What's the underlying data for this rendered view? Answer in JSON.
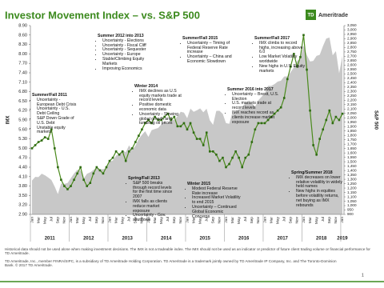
{
  "header": {
    "logo_mark": "TD",
    "logo_text": "Ameritrade"
  },
  "chart_data": {
    "type": "line",
    "title": "Investor Movement Index – vs. S&P 500",
    "ylabel": "IMX",
    "y2label": "S&P 500",
    "categories": [
      "Jan",
      null,
      "Mar",
      null,
      "May",
      null,
      "Jul",
      null,
      "Sep",
      null,
      "Nov",
      null,
      "Jan",
      null,
      "Mar",
      null,
      "May",
      null,
      "Jul",
      null,
      "Sep",
      null,
      "Nov",
      null,
      "Jan",
      null,
      "Mar",
      null,
      "May",
      null,
      "Jul",
      null,
      "Sep",
      null,
      "Nov",
      null,
      "Jan",
      null,
      "Mar",
      null,
      "May",
      null,
      "Jul",
      null,
      "Sep",
      null,
      "Nov",
      null,
      "Jan",
      null,
      "Mar",
      null,
      "May",
      null,
      "Jul",
      null,
      "Sep",
      null,
      "Nov",
      null,
      "Jan",
      null,
      "Mar",
      null,
      "May",
      null,
      "Jul",
      null,
      "Sep",
      null,
      "Nov",
      null,
      "Jan",
      null,
      "Mar",
      null,
      "May",
      null,
      "Jul",
      null,
      "Sep",
      null,
      "Nov",
      null,
      "Jan",
      null,
      "Mar",
      null,
      "May",
      null,
      "Jul",
      null,
      "Sep",
      null,
      "Nov",
      null,
      "Jan"
    ],
    "x_groups": [
      "2011",
      "2012",
      "2013",
      "2014",
      "2015",
      "2016",
      "2017",
      "2018",
      "2019"
    ],
    "series": [
      {
        "name": "IMX",
        "color": "#4a8a1c",
        "values": [
          5.0,
          5.1,
          5.2,
          5.25,
          5.35,
          5.3,
          5.6,
          5.0,
          4.4,
          4.0,
          3.8,
          3.7,
          3.8,
          4.0,
          4.2,
          4.4,
          4.0,
          3.8,
          3.9,
          4.2,
          4.4,
          4.3,
          4.2,
          4.4,
          4.6,
          4.7,
          4.9,
          4.8,
          4.9,
          4.6,
          4.9,
          5.0,
          5.2,
          5.4,
          5.6,
          5.8,
          5.9,
          5.8,
          6.0,
          5.9,
          5.9,
          6.0,
          6.1,
          5.9,
          6.0,
          5.7,
          5.7,
          5.8,
          5.6,
          5.8,
          5.5,
          5.3,
          5.3,
          5.1,
          5.5,
          4.9,
          4.9,
          4.8,
          4.6,
          4.7,
          4.4,
          4.5,
          4.7,
          4.9,
          4.7,
          4.4,
          4.7,
          4.8,
          5.2,
          5.6,
          5.8,
          5.8,
          5.8,
          5.9,
          6.0,
          6.1,
          6.2,
          6.3,
          6.6,
          7.2,
          7.6,
          8.0,
          7.6,
          7.9,
          8.6,
          7.5,
          6.2,
          5.1,
          4.8,
          5.3,
          5.6,
          5.9,
          6.2,
          5.8,
          6.0,
          5.9,
          6.1
        ]
      },
      {
        "name": "S&P 500",
        "color": "#c8c8c8",
        "axis": "y2",
        "values": [
          1286,
          1327,
          1325,
          1363,
          1345,
          1320,
          1292,
          1218,
          1131,
          1253,
          1247,
          1258,
          1312,
          1366,
          1408,
          1398,
          1310,
          1362,
          1379,
          1406,
          1441,
          1412,
          1416,
          1426,
          1498,
          1515,
          1569,
          1597,
          1631,
          1606,
          1686,
          1633,
          1682,
          1757,
          1806,
          1848,
          1783,
          1859,
          1872,
          1884,
          1924,
          1960,
          1931,
          2003,
          1972,
          2018,
          2068,
          2059,
          1995,
          2105,
          2068,
          2086,
          2107,
          2063,
          2104,
          1972,
          1920,
          2079,
          2080,
          2044,
          1940,
          1932,
          2060,
          2065,
          2097,
          2099,
          2174,
          2171,
          2168,
          2126,
          2199,
          2239,
          2279,
          2364,
          2363,
          2384,
          2412,
          2423,
          2470,
          2472,
          2519,
          2575,
          2648,
          2674,
          2824,
          2714,
          2641,
          2648,
          2705,
          2718,
          2816,
          2902,
          2914,
          2712,
          2760,
          2507,
          2704
        ]
      }
    ],
    "ylim": [
      2.9,
      8.9
    ],
    "yticks": [
      {
        "value": 2.9,
        "label": "2.90"
      },
      {
        "value": 3.2,
        "label": "3.20"
      },
      {
        "value": 3.5,
        "label": "3.50"
      },
      {
        "value": 3.8,
        "label": "3.80"
      },
      {
        "value": 4.1,
        "label": "4.10"
      },
      {
        "value": 4.4,
        "label": "4.40"
      },
      {
        "value": 4.7,
        "label": "4.70"
      },
      {
        "value": 5.0,
        "label": "5.00"
      },
      {
        "value": 5.3,
        "label": "5.30"
      },
      {
        "value": 5.6,
        "label": "5.60"
      },
      {
        "value": 5.9,
        "label": "5.90"
      },
      {
        "value": 6.2,
        "label": "6.20"
      },
      {
        "value": 6.5,
        "label": "6.50"
      },
      {
        "value": 6.8,
        "label": "6.80"
      },
      {
        "value": 7.1,
        "label": "7.10"
      },
      {
        "value": 7.4,
        "label": "7.40"
      },
      {
        "value": 7.7,
        "label": "7.70"
      },
      {
        "value": 8.0,
        "label": "8.00"
      },
      {
        "value": 8.3,
        "label": "8.30"
      },
      {
        "value": 8.6,
        "label": "8.60"
      },
      {
        "value": 8.9,
        "label": "8.90"
      }
    ],
    "y2lim": [
      900,
      3050
    ],
    "y2ticks": [
      900,
      950,
      {
        "value": 1000,
        "label": "1,000"
      },
      {
        "value": 1050,
        "label": "1,050"
      },
      {
        "value": 1100,
        "label": "1,100"
      },
      {
        "value": 1150,
        "label": "1,150"
      },
      {
        "value": 1200,
        "label": "1,200"
      },
      {
        "value": 1250,
        "label": "1,250"
      },
      {
        "value": 1300,
        "label": "1,300"
      },
      {
        "value": 1350,
        "label": "1,350"
      },
      {
        "value": 1400,
        "label": "1,400"
      },
      {
        "value": 1450,
        "label": "1,450"
      },
      {
        "value": 1500,
        "label": "1,500"
      },
      {
        "value": 1550,
        "label": "1,550"
      },
      {
        "value": 1600,
        "label": "1,600"
      },
      {
        "value": 1650,
        "label": "1,650"
      },
      {
        "value": 1700,
        "label": "1,700"
      },
      {
        "value": 1750,
        "label": "1,750"
      },
      {
        "value": 1800,
        "label": "1,800"
      },
      {
        "value": 1850,
        "label": "1,850"
      },
      {
        "value": 1900,
        "label": "1,900"
      },
      {
        "value": 1950,
        "label": "1,950"
      },
      {
        "value": 2000,
        "label": "2,000"
      },
      {
        "value": 2050,
        "label": "2,050"
      },
      {
        "value": 2100,
        "label": "2,100"
      },
      {
        "value": 2150,
        "label": "2,150"
      },
      {
        "value": 2200,
        "label": "2,200"
      },
      {
        "value": 2250,
        "label": "2,250"
      },
      {
        "value": 2300,
        "label": "2,300"
      },
      {
        "value": 2350,
        "label": "2,350"
      },
      {
        "value": 2400,
        "label": "2,400"
      },
      {
        "value": 2450,
        "label": "2,450"
      },
      {
        "value": 2500,
        "label": "2,500"
      },
      {
        "value": 2550,
        "label": "2,550"
      },
      {
        "value": 2600,
        "label": "2,600"
      },
      {
        "value": 2650,
        "label": "2,650"
      },
      {
        "value": 2700,
        "label": "2,700"
      },
      {
        "value": 2750,
        "label": "2,750"
      },
      {
        "value": 2800,
        "label": "2,800"
      },
      {
        "value": 2850,
        "label": "2,850"
      },
      {
        "value": 2900,
        "label": "2,900"
      },
      {
        "value": 2950,
        "label": "2,950"
      },
      {
        "value": 3000,
        "label": "3,000"
      },
      {
        "value": 3050,
        "label": "3,050"
      }
    ],
    "annotations": [
      {
        "title": "Summer/Fall 2011",
        "items": [
          "Uncertainty - European Debt Crisis",
          "Uncertainty - U.S. Debt Ceiling",
          "S&P Down Grade of U.S. Debt",
          "Unstable equity markets"
        ]
      },
      {
        "title": "Summer 2012 into 2013",
        "items": [
          "Uncertainty - Elections",
          "Uncertainty - Fiscal Cliff",
          "Uncertainty - Sequester",
          "Uncertainty - Europe",
          "Stable/Climbing Equity Markets",
          "Improving Economics"
        ]
      },
      {
        "title": "Spring/Fall 2013",
        "items": [
          "S&P 500 breaks through record levels for the first time since 2007",
          "IMX falls as clients reduce market exposure",
          "Uncertainty - Gov. shutdown"
        ]
      },
      {
        "title": "Winter 2014",
        "items": [
          "IMX declines as U.S equity markets trade at record levels",
          "Positive domestic economic data",
          "Uncertainty - Slowing global growth and tumbling oil prices"
        ]
      },
      {
        "title": "Summer/Fall 2015",
        "items": [
          "Uncertainty – Timing of Federal Reserve Rate increase",
          "Uncertainty – China and Economic Slowdown"
        ]
      },
      {
        "title": "Winter 2015",
        "items": [
          "Modest Federal Reserve Rate increase",
          "Increased Market Volatility to end 2015",
          "Uncertainty – Continued Global Economic Concerns"
        ]
      },
      {
        "title": "Summer 2016 into 2017",
        "items": [
          "Uncertainty – Brexit, U.S. Election",
          "U.S. markets trade at record levels",
          "IMX reaches record as clients increase market exposure"
        ]
      },
      {
        "title": "Summer/Fall 2017",
        "items": [
          "IMX climbs to record highs, increasing above 6.0",
          "Low Market Volatility worldwide",
          "New highs in U.S. Equity markets"
        ]
      },
      {
        "title": "Spring/Summer 2018",
        "items": [
          "IMX decreases on lower relative volatility in widely held names",
          "New highs in equities before volatility returns, net buying as IMX rebounds"
        ]
      }
    ]
  },
  "footer": {
    "disclaimer": "Historical data should not be used alone when making investment decisions. The IMX is not a tradeable index. The IMX should not be used as an indicator or predictor of future client trading volume or financial performance for TD Ameritrade.",
    "legal": "TD Ameritrade, Inc., member FINRA/SIPC, is a subsidiary of TD Ameritrade Holding Corporation. TD Ameritrade is a trademark jointly owned by TD Ameritrade IP Company, Inc. and The Toronto-Dominion Bank. © 2017 TD Ameritrade.",
    "page": "1"
  }
}
